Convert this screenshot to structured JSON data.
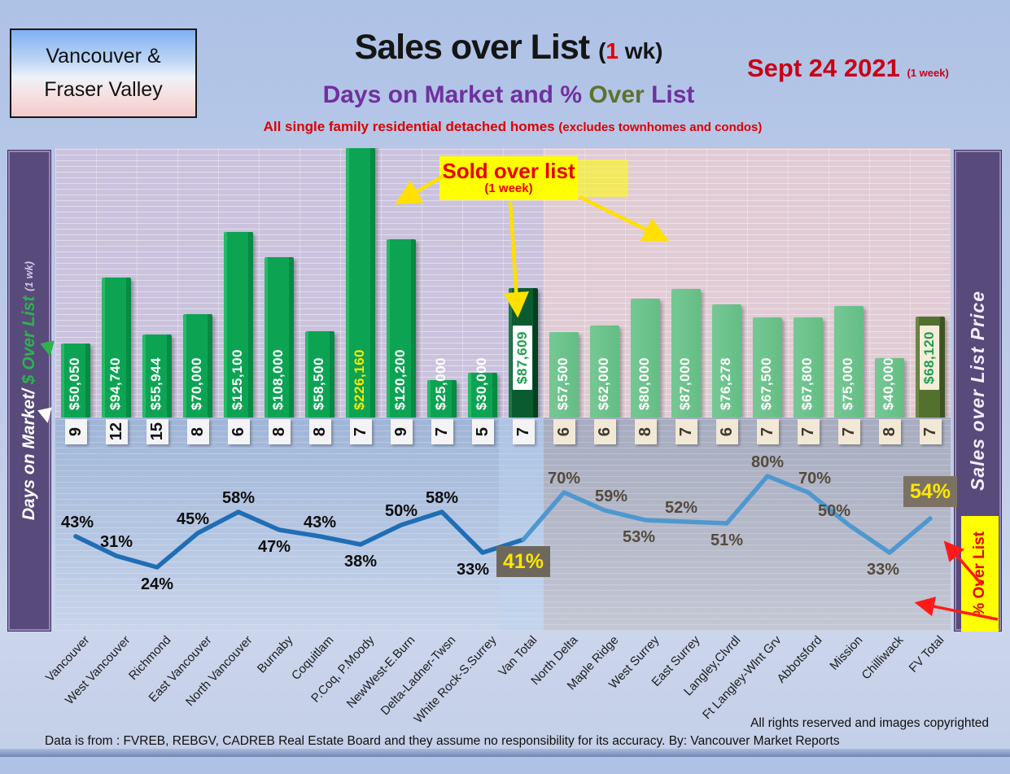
{
  "header": {
    "region_line1": "Vancouver &",
    "region_line2": "Fraser Valley",
    "title_main": "Sales over List ",
    "title_paren_pre": "(",
    "title_paren_num": "1",
    "title_paren_post": " wk)",
    "subtitle_p1": "Days on Market and % ",
    "subtitle_olive": "Over",
    "subtitle_p2": " List",
    "tagline": "All single family residential detached homes ",
    "tagline_paren": "(excludes townhomes and condos)",
    "date": "Sept 24  2021 ",
    "date_paren": "(1 week)"
  },
  "left_axis": {
    "white": "Days on Market/",
    "green": " $ Over List ",
    "small": "(1 wk)"
  },
  "right_axis": {
    "label": "Sales over List Price"
  },
  "callouts": {
    "sold_line1": "Sold over list",
    "sold_line2": "(1 week)",
    "pct_over_list": "% Over List"
  },
  "footer": {
    "rights": "All rights reserved and  images copyrighted",
    "disclaimer": "Data is from : FVREB, REBGV, CADREB Real Estate Board and they assume no responsibility for its accuracy. By: Vancouver Market Reports"
  },
  "colors": {
    "van_bar": "#0ca453",
    "fv_bar": "#58b77a",
    "van_total_bar": "#0a5c30",
    "fv_total_bar": "#54702f",
    "line_van": "#1f6eb5",
    "line_fv": "#4f98cf",
    "highlight_yellow": "#ffff00",
    "callout_red": "#e80000",
    "sidebar_purple": "#584a7b"
  },
  "chart_data": {
    "type": "combo bar+line",
    "title": "Sales over List (1 wk) — Days on Market and % Over List",
    "subtitle": "All single family residential detached homes (excludes townhomes and condos)",
    "date": "Sept 24 2021 (1 week)",
    "bar_series_name": "$ Over List",
    "days_series_name": "Days on Market",
    "line_series_name": "% Over List",
    "regions": [
      {
        "id": "van",
        "name": "Vancouver"
      },
      {
        "id": "fv",
        "name": "Fraser Valley"
      }
    ],
    "columns": [
      {
        "label": "Vancouver",
        "region": "van",
        "value": 50050,
        "value_label": "$50,050",
        "days": "9",
        "pct": 43,
        "pct_label": "43%",
        "pct_pos": "above",
        "pct_dx": 2
      },
      {
        "label": "West Vancouver",
        "region": "van",
        "value": 94740,
        "value_label": "$94,740",
        "days": "12",
        "pct": 31,
        "pct_label": "31%",
        "pct_pos": "above"
      },
      {
        "label": "Richmond",
        "region": "van",
        "value": 55944,
        "value_label": "$55,944",
        "days": "15",
        "pct": 24,
        "pct_label": "24%",
        "pct_pos": "below"
      },
      {
        "label": "East Vancouver",
        "region": "van",
        "value": 70000,
        "value_label": "$70,000",
        "days": "8",
        "pct": 45,
        "pct_label": "45%",
        "pct_pos": "above",
        "pct_dx": -6
      },
      {
        "label": "North Vancouver",
        "region": "van",
        "value": 125100,
        "value_label": "$125,100",
        "days": "6",
        "pct": 58,
        "pct_label": "58%",
        "pct_pos": "above"
      },
      {
        "label": "Burnaby",
        "region": "van",
        "value": 108000,
        "value_label": "$108,000",
        "days": "8",
        "pct": 47,
        "pct_label": "47%",
        "pct_pos": "below",
        "pct_dx": -6
      },
      {
        "label": "Coquitlam",
        "region": "van",
        "value": 58500,
        "value_label": "$58,500",
        "days": "8",
        "pct": 43,
        "pct_label": "43%",
        "pct_pos": "above"
      },
      {
        "label": "P.Coq, P.Moody",
        "region": "van",
        "value": 226160,
        "value_label": "$226,160",
        "days": "7",
        "pct": 38,
        "pct_label": "38%",
        "pct_pos": "below",
        "label_style": "yellow"
      },
      {
        "label": "NewWest-E.Burn",
        "region": "van",
        "value": 120200,
        "value_label": "$120,200",
        "days": "9",
        "pct": 50,
        "pct_label": "50%",
        "pct_pos": "above"
      },
      {
        "label": "Delta-Ladner-Twsn",
        "region": "van",
        "value": 25000,
        "value_label": "$25,000",
        "days": "7",
        "pct": 58,
        "pct_label": "58%",
        "pct_pos": "above"
      },
      {
        "label": "White Rock-S.Surrey",
        "region": "van",
        "value": 30000,
        "value_label": "$30,000",
        "days": "5",
        "pct": 33,
        "pct_label": "33%",
        "pct_pos": "below",
        "pct_dx": -12
      },
      {
        "label": "Van Total",
        "region": "van",
        "value": 87609,
        "value_label": "$87,609",
        "days": "7",
        "pct": 41,
        "pct_label": "41%",
        "pct_pos": "box",
        "special": true
      },
      {
        "label": "North Delta",
        "region": "fv",
        "value": 57500,
        "value_label": "$57,500",
        "days": "6",
        "pct": 70,
        "pct_label": "70%",
        "pct_pos": "above"
      },
      {
        "label": "Maple Ridge",
        "region": "fv",
        "value": 62000,
        "value_label": "$62,000",
        "days": "6",
        "pct": 59,
        "pct_label": "59%",
        "pct_pos": "above",
        "pct_dx": 8
      },
      {
        "label": "West Surrey",
        "region": "fv",
        "value": 80000,
        "value_label": "$80,000",
        "days": "8",
        "pct": 53,
        "pct_label": "53%",
        "pct_pos": "below",
        "pct_dx": -8
      },
      {
        "label": "East Surrey",
        "region": "fv",
        "value": 87000,
        "value_label": "$87,000",
        "days": "7",
        "pct": 52,
        "pct_label": "52%",
        "pct_pos": "above",
        "pct_dx": -6
      },
      {
        "label": "Langley,Clvrdl",
        "region": "fv",
        "value": 76278,
        "value_label": "$76,278",
        "days": "6",
        "pct": 51,
        "pct_label": "51%",
        "pct_pos": "below"
      },
      {
        "label": "Ft Langley-Wlnt Grv",
        "region": "fv",
        "value": 67500,
        "value_label": "$67,500",
        "days": "7",
        "pct": 80,
        "pct_label": "80%",
        "pct_pos": "above"
      },
      {
        "label": "Abbotsford",
        "region": "fv",
        "value": 67800,
        "value_label": "$67,800",
        "days": "7",
        "pct": 70,
        "pct_label": "70%",
        "pct_pos": "above",
        "pct_dx": 8
      },
      {
        "label": "Mission",
        "region": "fv",
        "value": 75000,
        "value_label": "$75,000",
        "days": "7",
        "pct": 50,
        "pct_label": "50%",
        "pct_pos": "above",
        "pct_dx": -18
      },
      {
        "label": "Chilliwack",
        "region": "fv",
        "value": 40000,
        "value_label": "$40,000",
        "days": "8",
        "pct": 33,
        "pct_label": "33%",
        "pct_pos": "below",
        "pct_dx": -8
      },
      {
        "label": "FV Total",
        "region": "fv",
        "value": 68120,
        "value_label": "$68,120",
        "days": "7",
        "pct": 54,
        "pct_label": "54%",
        "pct_pos": "box",
        "special": true
      }
    ],
    "layout_hints": {
      "bar_axis": "dollars over list, base 0",
      "line_axis": "percent over list",
      "grid": true
    }
  }
}
